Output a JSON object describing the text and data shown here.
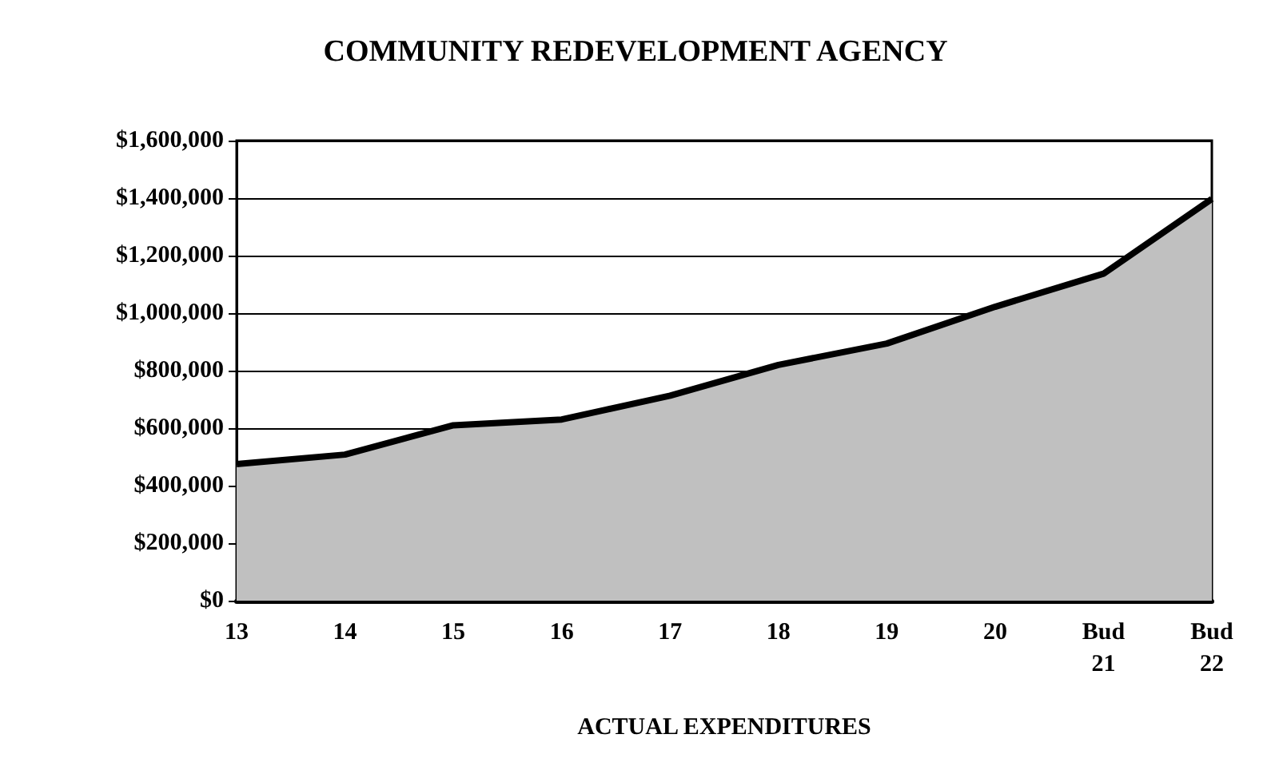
{
  "chart_data": {
    "type": "area",
    "title": "COMMUNITY REDEVELOPMENT AGENCY",
    "xlabel": "ACTUAL EXPENDITURES",
    "categories": [
      "13",
      "14",
      "15",
      "16",
      "17",
      "18",
      "19",
      "20",
      "Bud\n21",
      "Bud\n22"
    ],
    "series": [
      {
        "color": "#c0c0c0",
        "values": [
          475000,
          508000,
          610000,
          630000,
          713000,
          820000,
          894000,
          1022000,
          1137000,
          1397000
        ]
      }
    ],
    "ylim": [
      0,
      1600000
    ],
    "yticks": [
      {
        "value": 0,
        "label": "$0"
      },
      {
        "value": 200000,
        "label": "$200,000"
      },
      {
        "value": 400000,
        "label": "$400,000"
      },
      {
        "value": 600000,
        "label": "$600,000"
      },
      {
        "value": 800000,
        "label": "$800,000"
      },
      {
        "value": 1000000,
        "label": "$1,000,000"
      },
      {
        "value": 1200000,
        "label": "$1,200,000"
      },
      {
        "value": 1400000,
        "label": "$1,400,000"
      },
      {
        "value": 1600000,
        "label": "$1,600,000"
      }
    ],
    "grid": "y",
    "marker": "none",
    "line_style": "solid"
  }
}
